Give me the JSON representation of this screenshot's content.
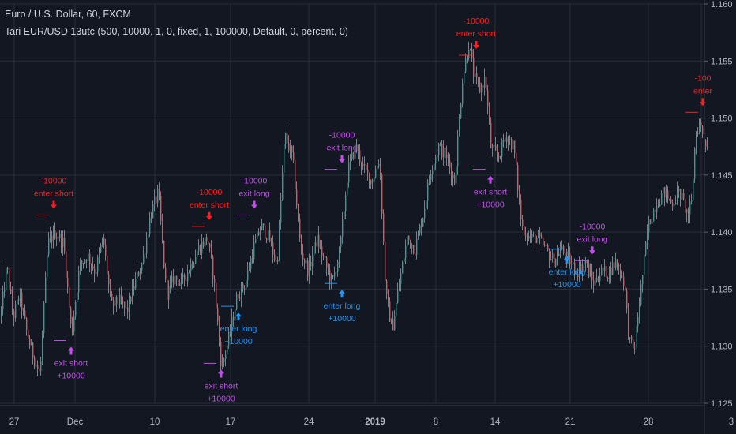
{
  "header": {
    "symbol_line": "Euro / U.S. Dollar, 60, FXCM",
    "study_line": "Tari EUR/USD 13utc (500, 10000, 1, 0, fixed, 1, 100000, Default, 0, percent, 0)"
  },
  "colors": {
    "background": "#131722",
    "grid": "#2a2e39",
    "up": "#26a69a",
    "down": "#ef5350",
    "long_signal": "#2196f3",
    "exit_signal": "#c050e8",
    "short_signal": "#ff1e1e",
    "axis_text": "#b2b5be"
  },
  "chart_data": {
    "type": "candlestick",
    "x_ticks": [
      "27",
      "Dec",
      "10",
      "17",
      "24",
      "2019",
      "8",
      "14",
      "21",
      "28"
    ],
    "extra_x_tick": "3",
    "y_ticks": [
      "1.160",
      "1.155",
      "1.150",
      "1.145",
      "1.140",
      "1.135",
      "1.130",
      "1.125"
    ],
    "ylim": [
      1.125,
      1.16
    ],
    "price_path": [
      [
        0,
        1.1325
      ],
      [
        8,
        1.137
      ],
      [
        16,
        1.1325
      ],
      [
        24,
        1.1345
      ],
      [
        34,
        1.131
      ],
      [
        42,
        1.129
      ],
      [
        50,
        1.1275
      ],
      [
        60,
        1.139
      ],
      [
        70,
        1.14
      ],
      [
        80,
        1.139
      ],
      [
        90,
        1.131
      ],
      [
        100,
        1.137
      ],
      [
        110,
        1.138
      ],
      [
        120,
        1.1365
      ],
      [
        130,
        1.1395
      ],
      [
        140,
        1.1335
      ],
      [
        150,
        1.134
      ],
      [
        160,
        1.133
      ],
      [
        170,
        1.1355
      ],
      [
        180,
        1.1375
      ],
      [
        190,
        1.1415
      ],
      [
        200,
        1.1435
      ],
      [
        210,
        1.1345
      ],
      [
        220,
        1.136
      ],
      [
        230,
        1.1355
      ],
      [
        240,
        1.137
      ],
      [
        250,
        1.1385
      ],
      [
        262,
        1.1395
      ],
      [
        270,
        1.136
      ],
      [
        280,
        1.128
      ],
      [
        290,
        1.131
      ],
      [
        300,
        1.1345
      ],
      [
        310,
        1.1355
      ],
      [
        320,
        1.1385
      ],
      [
        330,
        1.1405
      ],
      [
        340,
        1.1395
      ],
      [
        350,
        1.137
      ],
      [
        360,
        1.1485
      ],
      [
        370,
        1.1465
      ],
      [
        380,
        1.1385
      ],
      [
        390,
        1.1365
      ],
      [
        400,
        1.1395
      ],
      [
        410,
        1.1375
      ],
      [
        420,
        1.1355
      ],
      [
        430,
        1.1385
      ],
      [
        440,
        1.1455
      ],
      [
        450,
        1.1475
      ],
      [
        460,
        1.1455
      ],
      [
        470,
        1.1445
      ],
      [
        480,
        1.1465
      ],
      [
        488,
        1.1345
      ],
      [
        496,
        1.1315
      ],
      [
        505,
        1.1355
      ],
      [
        515,
        1.1395
      ],
      [
        525,
        1.1385
      ],
      [
        535,
        1.1415
      ],
      [
        545,
        1.1455
      ],
      [
        555,
        1.1475
      ],
      [
        565,
        1.1465
      ],
      [
        575,
        1.1445
      ],
      [
        585,
        1.1535
      ],
      [
        593,
        1.1565
      ],
      [
        600,
        1.1535
      ],
      [
        607,
        1.1525
      ],
      [
        614,
        1.1535
      ],
      [
        621,
        1.1475
      ],
      [
        630,
        1.1465
      ],
      [
        640,
        1.1485
      ],
      [
        650,
        1.1475
      ],
      [
        660,
        1.1405
      ],
      [
        670,
        1.1395
      ],
      [
        680,
        1.1395
      ],
      [
        690,
        1.1385
      ],
      [
        700,
        1.1375
      ],
      [
        710,
        1.1385
      ],
      [
        720,
        1.1375
      ],
      [
        730,
        1.1365
      ],
      [
        740,
        1.1375
      ],
      [
        750,
        1.1355
      ],
      [
        760,
        1.1365
      ],
      [
        770,
        1.1365
      ],
      [
        780,
        1.1375
      ],
      [
        790,
        1.1355
      ],
      [
        796,
        1.1305
      ],
      [
        802,
        1.1295
      ],
      [
        810,
        1.1345
      ],
      [
        820,
        1.1405
      ],
      [
        830,
        1.1425
      ],
      [
        840,
        1.1435
      ],
      [
        850,
        1.1425
      ],
      [
        860,
        1.1435
      ],
      [
        870,
        1.1415
      ],
      [
        875,
        1.1425
      ],
      [
        880,
        1.1485
      ],
      [
        885,
        1.1495
      ],
      [
        890,
        1.1485
      ],
      [
        895,
        1.1475
      ]
    ],
    "signals": [
      {
        "side": "short",
        "x": 68,
        "price": 1.1415,
        "label_top": "-10000",
        "label": "enter short"
      },
      {
        "side": "exit",
        "x": 90,
        "price": 1.1305,
        "label": "exit short",
        "label_bottom": "+10000"
      },
      {
        "side": "short",
        "x": 265,
        "price": 1.1405,
        "label_top": "-10000",
        "label": "enter short"
      },
      {
        "side": "exit",
        "x": 280,
        "price": 1.1285,
        "label": "exit short",
        "label_bottom": "+10000"
      },
      {
        "side": "long",
        "x": 302,
        "price": 1.1335,
        "label": "enter long",
        "label_bottom": "+10000"
      },
      {
        "side": "exit",
        "x": 322,
        "price": 1.1415,
        "label_top": "-10000",
        "label": "exit long"
      },
      {
        "side": "long",
        "x": 433,
        "price": 1.1355,
        "label": "enter long",
        "label_bottom": "+10000"
      },
      {
        "side": "exit",
        "x": 433,
        "price": 1.1455,
        "label_top": "-10000",
        "label": "exit long"
      },
      {
        "side": "short",
        "x": 603,
        "price": 1.1555,
        "label_top": "-10000",
        "label": "enter short"
      },
      {
        "side": "exit",
        "x": 621,
        "price": 1.1455,
        "label": "exit short",
        "label_bottom": "+10000"
      },
      {
        "side": "long",
        "x": 718,
        "price": 1.1385,
        "label": "enter long",
        "label_bottom": "+10000"
      },
      {
        "side": "exit",
        "x": 750,
        "price": 1.1375,
        "label_top": "-10000",
        "label": "exit long"
      },
      {
        "side": "short",
        "x": 890,
        "price": 1.1505,
        "label_top": "-100",
        "label": "enter"
      }
    ]
  }
}
